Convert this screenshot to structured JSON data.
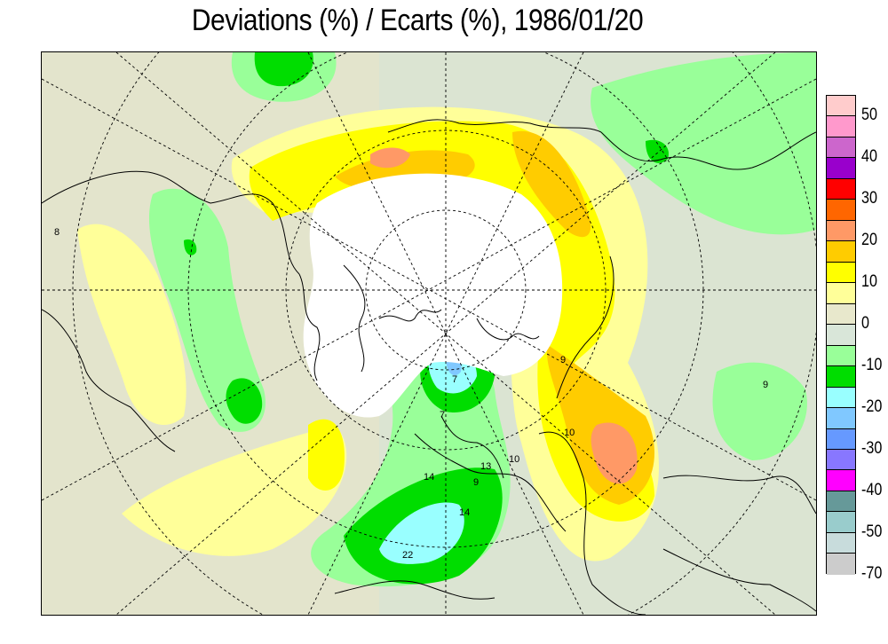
{
  "title": "Deviations (%) / Ecarts (%), 1986/01/20",
  "legend": {
    "colors": [
      "#ffcccc",
      "#ff99cc",
      "#cc66cc",
      "#9900cc",
      "#ff0000",
      "#ff6600",
      "#ff9966",
      "#ffcc00",
      "#ffff00",
      "#ffff99",
      "#e8e8cc",
      "#d9e6d9",
      "#99ff99",
      "#00dd00",
      "#99ffff",
      "#80c8ff",
      "#6699ff",
      "#8877ff",
      "#ff00ff",
      "#669999",
      "#99cccc",
      "#c8dcdc",
      "#cccccc"
    ],
    "labels": [
      "50",
      "40",
      "30",
      "20",
      "10",
      "0",
      "-10",
      "-20",
      "-30",
      "-40",
      "-50",
      "-70"
    ]
  },
  "contour_labels": [
    "7",
    "14",
    "14",
    "22",
    "9",
    "10",
    "13",
    "9",
    "10",
    "7",
    "9",
    "8"
  ]
}
